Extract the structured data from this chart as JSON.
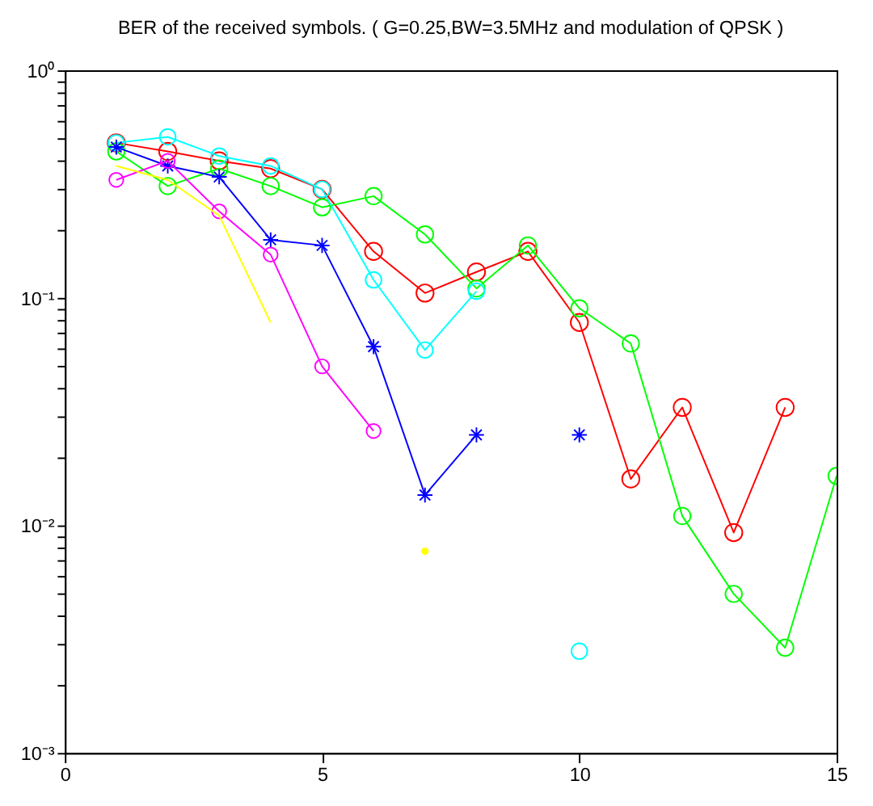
{
  "chart_data": {
    "type": "line",
    "title": "BER of the received symbols. ( G=0.25,BW=3.5MHz and modulation of QPSK )",
    "x": [
      1,
      2,
      3,
      4,
      5,
      6,
      7,
      8,
      9,
      10,
      11,
      12,
      13,
      14,
      15
    ],
    "series": [
      {
        "color": "#ff0000",
        "marker": "circle",
        "values": [
          0.48,
          0.44,
          0.4,
          0.37,
          0.3,
          0.16,
          0.105,
          0.13,
          0.16,
          0.078,
          0.016,
          0.033,
          0.0093,
          0.033,
          null
        ]
      },
      {
        "color": "#00ff00",
        "marker": "circle",
        "values": [
          0.44,
          0.31,
          0.37,
          0.31,
          0.25,
          0.28,
          0.19,
          0.11,
          0.17,
          0.09,
          0.063,
          0.011,
          0.005,
          0.0029,
          0.0165
        ]
      },
      {
        "color": "#00ffff",
        "marker": "circle",
        "values": [
          0.48,
          0.51,
          0.42,
          0.38,
          0.3,
          0.12,
          0.059,
          0.107,
          null,
          0.0028,
          null,
          null,
          null,
          null,
          null
        ]
      },
      {
        "color": "#0000ff",
        "marker": "cross",
        "values": [
          0.46,
          0.38,
          0.34,
          0.18,
          0.17,
          0.061,
          0.0136,
          0.025,
          null,
          0.025,
          null,
          null,
          null,
          null,
          null
        ]
      },
      {
        "color": "#ff00ff",
        "marker": "circle",
        "values": [
          0.33,
          0.4,
          0.24,
          0.155,
          0.05,
          0.026,
          null,
          null,
          null,
          null,
          null,
          null,
          null,
          null,
          null
        ]
      },
      {
        "color": "#ffff00",
        "marker": "none",
        "values": [
          0.38,
          0.33,
          0.23,
          0.078,
          null,
          null,
          0.0077,
          null,
          null,
          null,
          null,
          null,
          null,
          null,
          null
        ]
      }
    ],
    "log": "y",
    "grid": false,
    "line_style": "solid",
    "xlim": [
      0,
      15
    ],
    "xticks": [
      0,
      5,
      10,
      15
    ],
    "ylim": [
      0.001,
      1
    ],
    "yticks": [
      {
        "value": 0.001,
        "label": "10⁻³"
      },
      {
        "value": 0.002,
        "label": null
      },
      {
        "value": 0.003,
        "label": null
      },
      {
        "value": 0.004,
        "label": null
      },
      {
        "value": 0.005,
        "label": null
      },
      {
        "value": 0.006,
        "label": null
      },
      {
        "value": 0.007,
        "label": null
      },
      {
        "value": 0.008,
        "label": null
      },
      {
        "value": 0.009,
        "label": null
      },
      {
        "value": 0.01,
        "label": "10⁻²"
      },
      {
        "value": 0.02,
        "label": null
      },
      {
        "value": 0.03,
        "label": null
      },
      {
        "value": 0.04,
        "label": null
      },
      {
        "value": 0.05,
        "label": null
      },
      {
        "value": 0.06,
        "label": null
      },
      {
        "value": 0.07,
        "label": null
      },
      {
        "value": 0.08,
        "label": null
      },
      {
        "value": 0.09,
        "label": null
      },
      {
        "value": 0.1,
        "label": "10⁻¹"
      },
      {
        "value": 0.2,
        "label": null
      },
      {
        "value": 0.3,
        "label": null
      },
      {
        "value": 0.4,
        "label": null
      },
      {
        "value": 0.5,
        "label": null
      },
      {
        "value": 0.6,
        "label": null
      },
      {
        "value": 0.7,
        "label": null
      },
      {
        "value": 0.8,
        "label": null
      },
      {
        "value": 0.9,
        "label": null
      },
      {
        "value": 1,
        "label": "10⁰"
      }
    ]
  }
}
